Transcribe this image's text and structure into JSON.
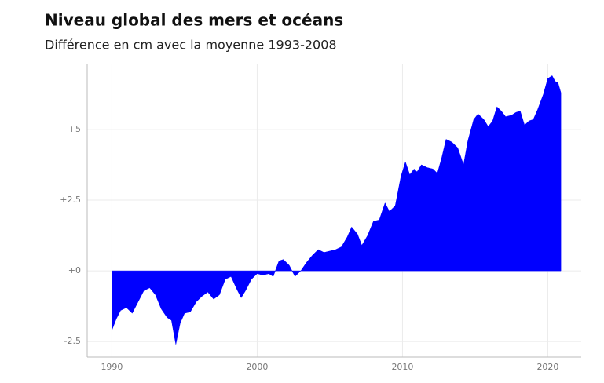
{
  "chart_data": {
    "type": "area",
    "title": "Niveau global des mers et océans",
    "subtitle": "Différence en cm avec la moyenne 1993-2008",
    "color": "#0000ff",
    "grid": true,
    "xlim": [
      1988.3,
      2022.3
    ],
    "ylim": [
      -3.05,
      7.3
    ],
    "xticks": [
      1990,
      2000,
      2010,
      2020
    ],
    "yticks": [
      {
        "value": -2.5,
        "label": "-2.5"
      },
      {
        "value": 0,
        "label": "+0"
      },
      {
        "value": 2.5,
        "label": "+2.5"
      },
      {
        "value": 5,
        "label": "+5"
      }
    ],
    "x": [
      1990.0,
      1990.3,
      1990.6,
      1991.0,
      1991.4,
      1991.8,
      1992.2,
      1992.6,
      1993.0,
      1993.4,
      1993.8,
      1994.1,
      1994.4,
      1994.7,
      1995.0,
      1995.4,
      1995.8,
      1996.2,
      1996.6,
      1997.0,
      1997.4,
      1997.8,
      1998.2,
      1998.6,
      1998.9,
      1999.2,
      1999.6,
      2000.0,
      2000.4,
      2000.8,
      2001.1,
      2001.5,
      2001.8,
      2002.2,
      2002.6,
      2003.0,
      2003.4,
      2003.8,
      2004.2,
      2004.6,
      2005.0,
      2005.4,
      2005.8,
      2006.2,
      2006.5,
      2006.9,
      2007.2,
      2007.6,
      2008.0,
      2008.4,
      2008.8,
      2009.1,
      2009.5,
      2009.9,
      2010.2,
      2010.5,
      2010.8,
      2011.0,
      2011.3,
      2011.7,
      2012.1,
      2012.4,
      2012.7,
      2013.0,
      2013.4,
      2013.8,
      2014.2,
      2014.5,
      2014.9,
      2015.2,
      2015.6,
      2015.9,
      2016.2,
      2016.5,
      2016.8,
      2017.1,
      2017.5,
      2017.8,
      2018.1,
      2018.4,
      2018.7,
      2019.0,
      2019.3,
      2019.7,
      2020.0,
      2020.3,
      2020.5,
      2020.7,
      2020.9
    ],
    "values": [
      -2.1,
      -1.7,
      -1.4,
      -1.3,
      -1.5,
      -1.1,
      -0.7,
      -0.6,
      -0.85,
      -1.35,
      -1.65,
      -1.75,
      -2.6,
      -1.85,
      -1.5,
      -1.45,
      -1.1,
      -0.9,
      -0.75,
      -1.0,
      -0.85,
      -0.3,
      -0.2,
      -0.65,
      -0.95,
      -0.7,
      -0.3,
      -0.1,
      -0.15,
      -0.1,
      -0.2,
      0.35,
      0.4,
      0.2,
      -0.2,
      0.0,
      0.3,
      0.55,
      0.75,
      0.65,
      0.7,
      0.75,
      0.85,
      1.2,
      1.55,
      1.3,
      0.9,
      1.25,
      1.75,
      1.8,
      2.4,
      2.1,
      2.3,
      3.35,
      3.85,
      3.4,
      3.6,
      3.5,
      3.75,
      3.65,
      3.6,
      3.45,
      4.0,
      4.65,
      4.55,
      4.35,
      3.75,
      4.6,
      5.35,
      5.55,
      5.35,
      5.1,
      5.3,
      5.8,
      5.65,
      5.45,
      5.5,
      5.6,
      5.65,
      5.15,
      5.3,
      5.35,
      5.7,
      6.25,
      6.8,
      6.9,
      6.7,
      6.65,
      6.3
    ]
  }
}
